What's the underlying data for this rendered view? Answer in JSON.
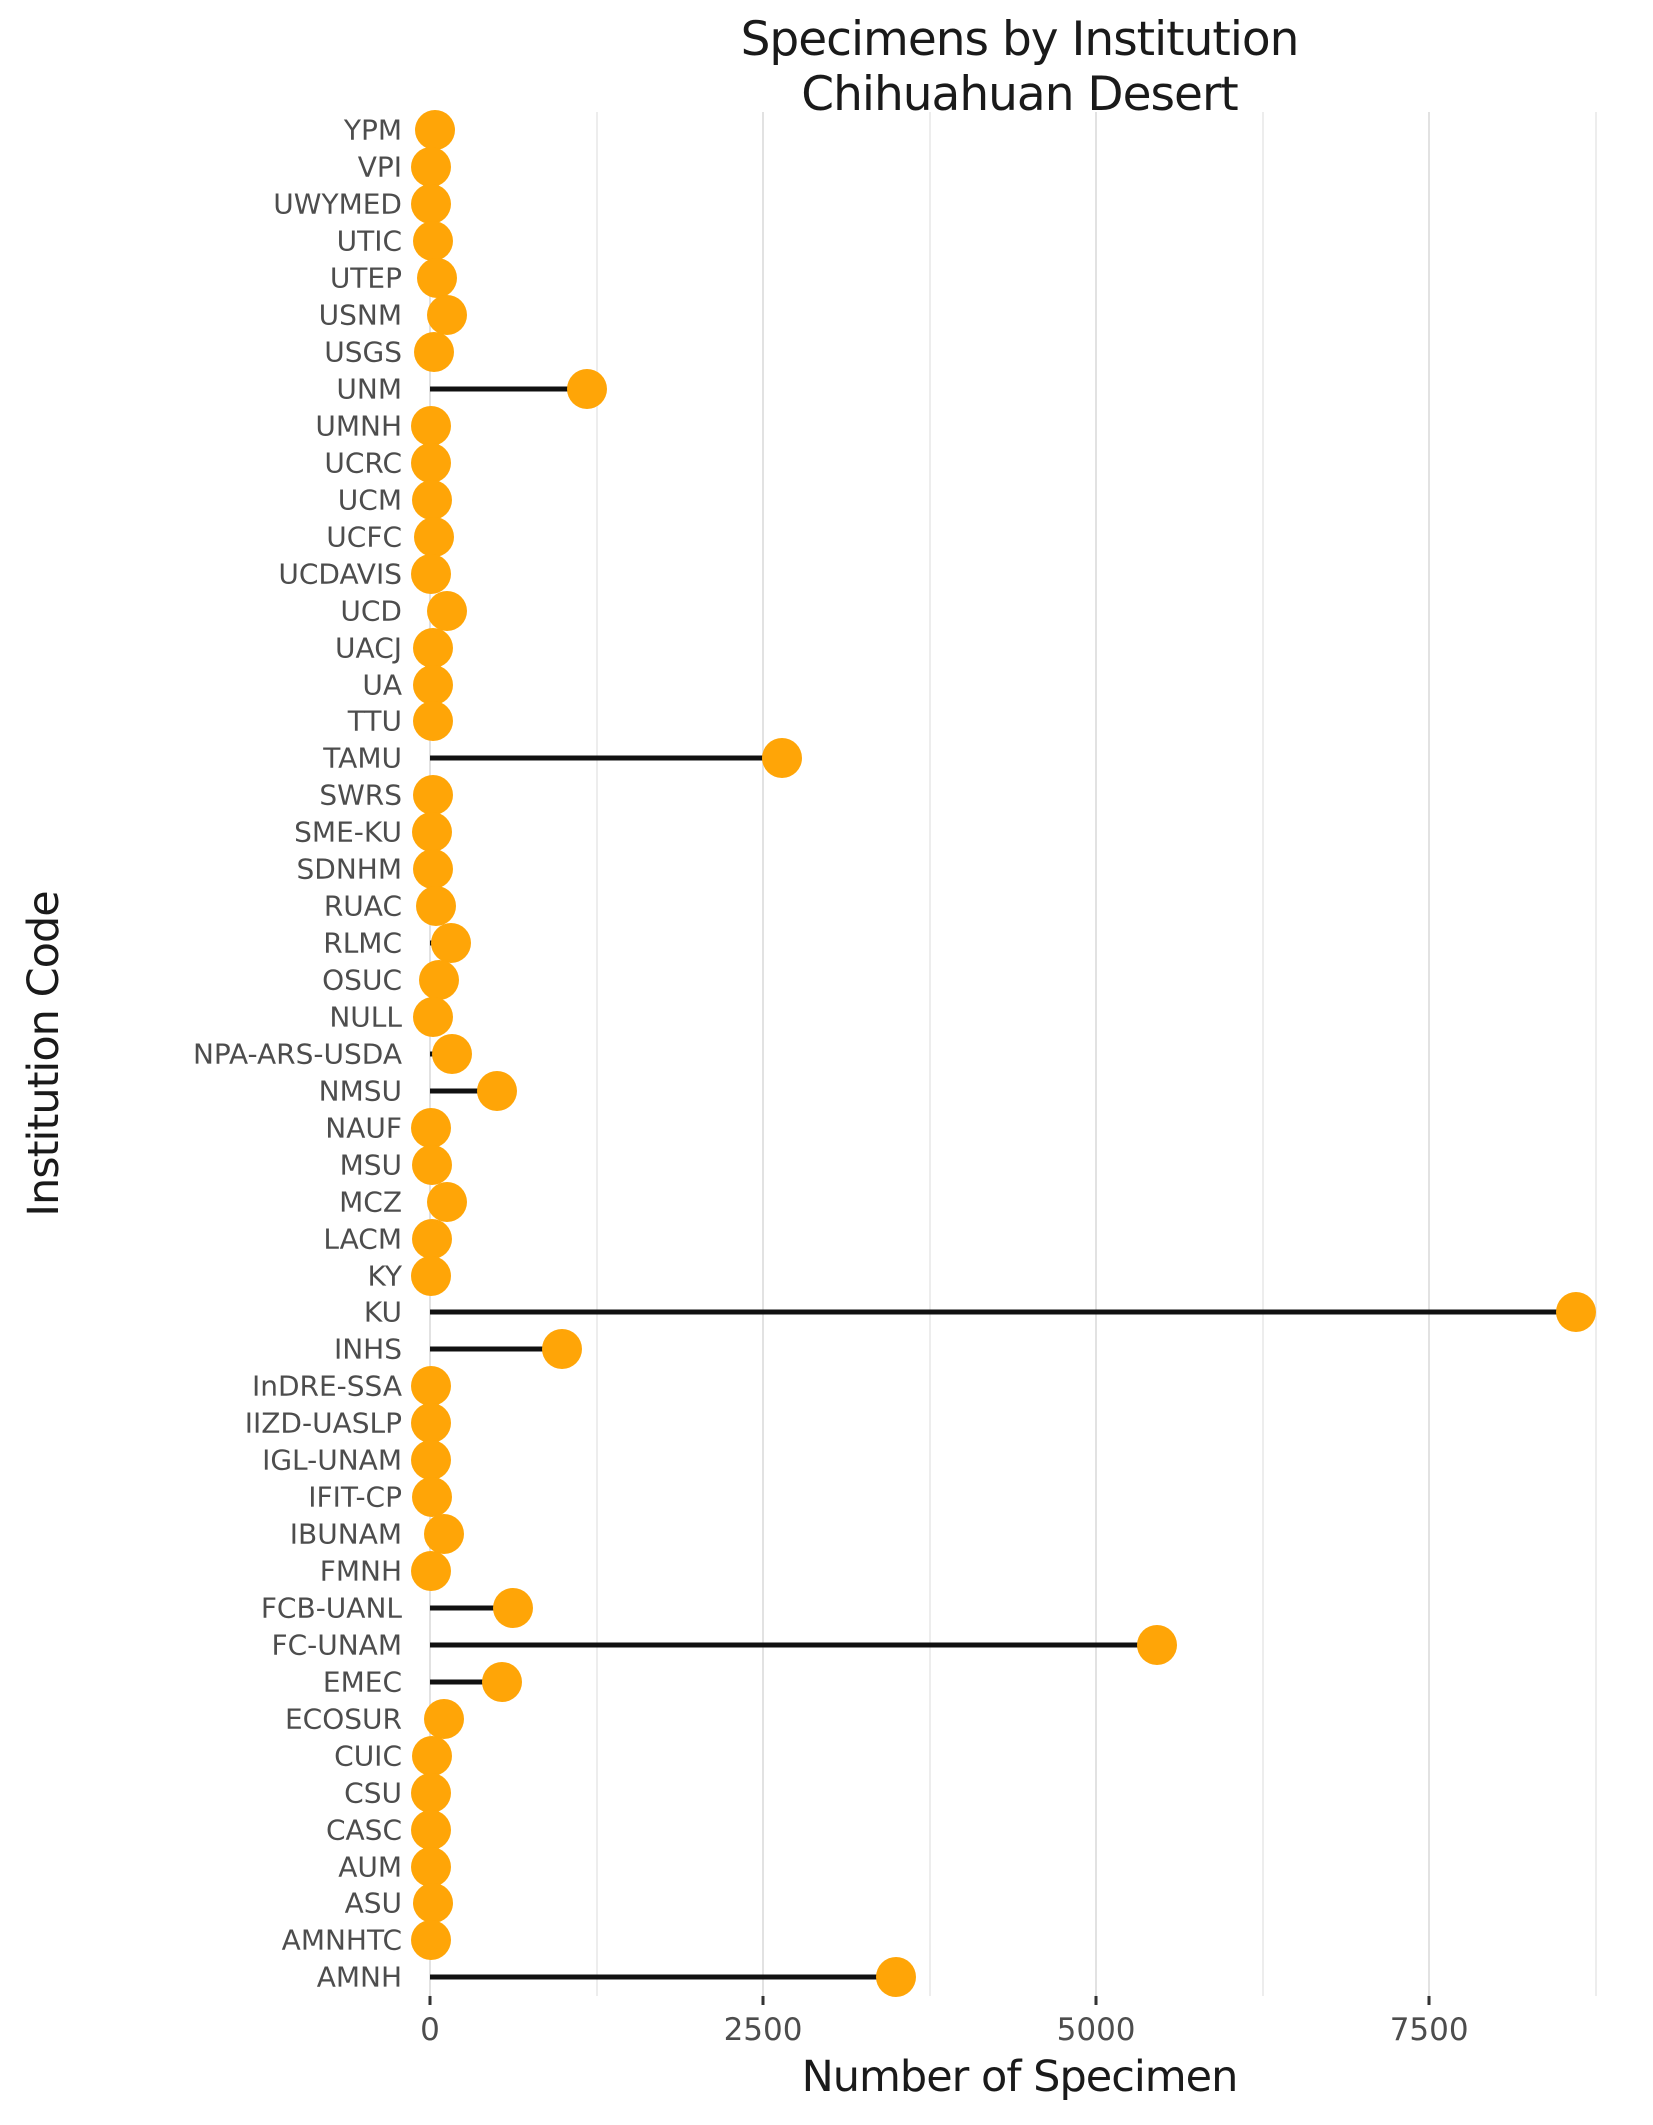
{
  "chart_data": {
    "type": "scatter",
    "variant": "horizontal-lollipop",
    "title": "Specimens by Institution\nChihuahuan Desert",
    "title_lines": [
      "Specimens by Institution",
      "Chihuahuan Desert"
    ],
    "xlabel": "Number of Specimen",
    "ylabel": "Institution Code",
    "xlim": [
      -90,
      8940
    ],
    "x_ticks": [
      0,
      2500,
      5000,
      7500
    ],
    "grid_minor_step": 1250,
    "grid_max": 8750,
    "legend": false,
    "categories": [
      "YPM",
      "VPI",
      "UWYMED",
      "UTIC",
      "UTEP",
      "USNM",
      "USGS",
      "UNM",
      "UMNH",
      "UCRC",
      "UCM",
      "UCFC",
      "UCDAVIS",
      "UCD",
      "UACJ",
      "UA",
      "TTU",
      "TAMU",
      "SWRS",
      "SME-KU",
      "SDNHM",
      "RUAC",
      "RLMC",
      "OSUC",
      "NULL",
      "NPA-ARS-USDA",
      "NMSU",
      "NAUF",
      "MSU",
      "MCZ",
      "LACM",
      "KY",
      "KU",
      "INHS",
      "InDRE-SSA",
      "IIZD-UASLP",
      "IGL-UNAM",
      "IFIT-CP",
      "IBUNAM",
      "FMNH",
      "FCB-UANL",
      "FC-UNAM",
      "EMEC",
      "ECOSUR",
      "CUIC",
      "CSU",
      "CASC",
      "AUM",
      "ASU",
      "AMNHTC",
      "AMNH"
    ],
    "values": [
      35,
      5,
      10,
      20,
      50,
      130,
      30,
      1180,
      5,
      10,
      15,
      30,
      10,
      130,
      20,
      20,
      25,
      2640,
      20,
      15,
      20,
      45,
      155,
      70,
      20,
      165,
      505,
      5,
      15,
      125,
      15,
      5,
      8600,
      990,
      10,
      5,
      5,
      15,
      105,
      5,
      620,
      5460,
      540,
      105,
      15,
      5,
      5,
      10,
      20,
      5,
      3500
    ],
    "colors": {
      "dot": "#FFA507",
      "stem": "#111111",
      "grid_major": "#E2E2E2",
      "grid_minor": "#EDEDED",
      "category_label": "#4D4D4D",
      "tick_label": "#4D4D4D",
      "title": "#1A1A1A",
      "background": "#FFFFFF"
    }
  }
}
